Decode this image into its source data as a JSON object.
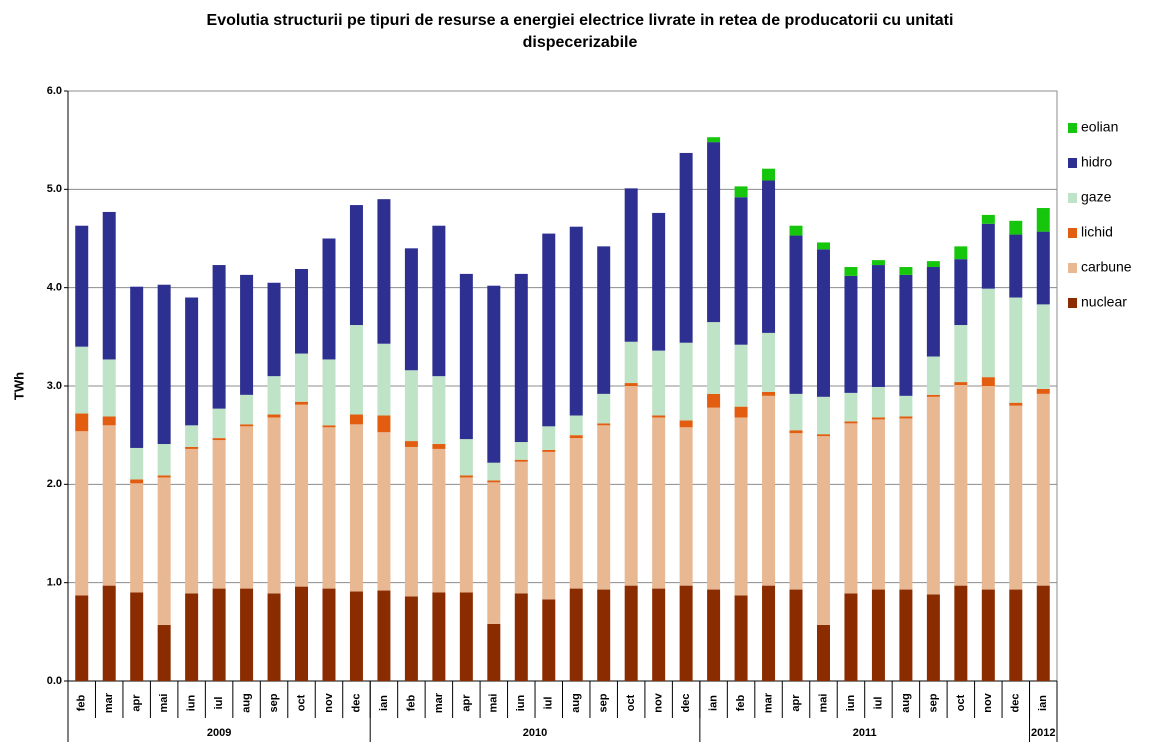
{
  "chart_data": {
    "type": "stacked-bar",
    "title": "Evolutia structurii pe tipuri de resurse a energiei electrice livrate in retea de producatorii cu unitati dispecerizabile",
    "ylabel": "TWh",
    "categories": [
      "feb",
      "mar",
      "apr",
      "mai",
      "iun",
      "iul",
      "aug",
      "sep",
      "oct",
      "nov",
      "dec",
      "ian",
      "feb",
      "mar",
      "apr",
      "mai",
      "iun",
      "iul",
      "aug",
      "sep",
      "oct",
      "nov",
      "dec",
      "ian",
      "feb",
      "mar",
      "apr",
      "mai",
      "iun",
      "iul",
      "aug",
      "sep",
      "oct",
      "nov",
      "dec",
      "ian"
    ],
    "groups": [
      {
        "name": "2009",
        "count": 11
      },
      {
        "name": "2010",
        "count": 12
      },
      {
        "name": "2011",
        "count": 12
      },
      {
        "name": "2012",
        "count": 1
      }
    ],
    "series": [
      {
        "name": "nuclear",
        "color": "#8b2c00",
        "values": [
          0.87,
          0.97,
          0.9,
          0.57,
          0.89,
          0.94,
          0.94,
          0.89,
          0.96,
          0.94,
          0.91,
          0.92,
          0.86,
          0.9,
          0.9,
          0.58,
          0.89,
          0.83,
          0.94,
          0.93,
          0.97,
          0.94,
          0.97,
          0.93,
          0.87,
          0.97,
          0.93,
          0.57,
          0.89,
          0.93,
          0.93,
          0.88,
          0.97,
          0.93,
          0.93,
          0.97
        ]
      },
      {
        "name": "carbune",
        "color": "#e8b893",
        "values": [
          1.67,
          1.63,
          1.11,
          1.5,
          1.47,
          1.51,
          1.65,
          1.79,
          1.85,
          1.64,
          1.7,
          1.61,
          1.52,
          1.46,
          1.17,
          1.44,
          1.34,
          1.5,
          1.53,
          1.67,
          2.03,
          1.74,
          1.61,
          1.85,
          1.81,
          1.93,
          1.59,
          1.92,
          1.73,
          1.73,
          1.74,
          2.01,
          2.04,
          2.07,
          1.87,
          1.95
        ]
      },
      {
        "name": "lichid",
        "color": "#e25d0f",
        "values": [
          0.18,
          0.09,
          0.04,
          0.02,
          0.02,
          0.02,
          0.02,
          0.03,
          0.03,
          0.02,
          0.1,
          0.17,
          0.06,
          0.05,
          0.02,
          0.02,
          0.02,
          0.02,
          0.03,
          0.02,
          0.03,
          0.02,
          0.07,
          0.14,
          0.11,
          0.04,
          0.03,
          0.02,
          0.02,
          0.02,
          0.02,
          0.02,
          0.03,
          0.09,
          0.03,
          0.05
        ]
      },
      {
        "name": "gaze",
        "color": "#bfe3c6",
        "values": [
          0.68,
          0.58,
          0.32,
          0.32,
          0.22,
          0.3,
          0.3,
          0.39,
          0.49,
          0.67,
          0.91,
          0.73,
          0.72,
          0.69,
          0.37,
          0.18,
          0.18,
          0.24,
          0.2,
          0.3,
          0.42,
          0.66,
          0.79,
          0.73,
          0.63,
          0.6,
          0.37,
          0.38,
          0.29,
          0.31,
          0.21,
          0.39,
          0.58,
          0.9,
          1.07,
          0.86
        ]
      },
      {
        "name": "hidro",
        "color": "#2e3091",
        "values": [
          1.23,
          1.5,
          1.64,
          1.62,
          1.3,
          1.46,
          1.22,
          0.95,
          0.86,
          1.23,
          1.22,
          1.47,
          1.24,
          1.53,
          1.68,
          1.8,
          1.71,
          1.96,
          1.92,
          1.5,
          1.56,
          1.4,
          1.93,
          1.83,
          1.5,
          1.55,
          1.61,
          1.5,
          1.19,
          1.24,
          1.23,
          0.91,
          0.67,
          0.66,
          0.64,
          0.74
        ]
      },
      {
        "name": "eolian",
        "color": "#16c60c",
        "values": [
          0,
          0,
          0,
          0,
          0,
          0,
          0,
          0,
          0,
          0,
          0,
          0,
          0,
          0,
          0,
          0,
          0,
          0,
          0,
          0,
          0,
          0,
          0,
          0.05,
          0.11,
          0.12,
          0.1,
          0.07,
          0.09,
          0.05,
          0.08,
          0.06,
          0.13,
          0.09,
          0.14,
          0.24
        ]
      }
    ],
    "ylim": [
      0,
      6
    ],
    "yticks": [
      {
        "value": 0,
        "label": "0.0"
      },
      {
        "value": 1,
        "label": "1.0"
      },
      {
        "value": 2,
        "label": "2.0"
      },
      {
        "value": 3,
        "label": "3.0"
      },
      {
        "value": 4,
        "label": "4.0"
      },
      {
        "value": 5,
        "label": "5.0"
      },
      {
        "value": 6,
        "label": "6.0"
      }
    ],
    "grid": true,
    "legend": "right"
  }
}
